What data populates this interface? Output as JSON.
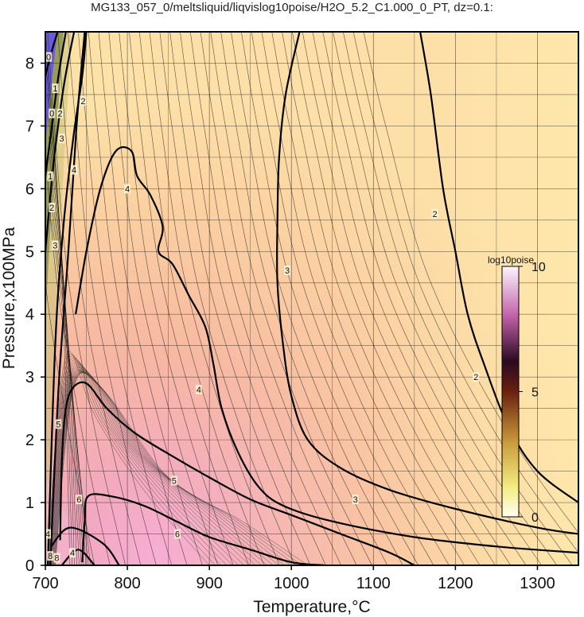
{
  "chart_data": {
    "type": "heatmap",
    "title": "MG133_057_0/meltsliquid/liqvislog10poise/H2O_5.2_C1.000_0_PT, dz=0.1:",
    "xlabel": "Temperature,°C",
    "ylabel": "Pressure,x100MPa",
    "xlim": [
      700,
      1350
    ],
    "ylim": [
      0,
      8.5
    ],
    "xticks": [
      700,
      800,
      900,
      1000,
      1100,
      1200,
      1300
    ],
    "yticks": [
      0,
      1,
      2,
      3,
      4,
      5,
      6,
      7,
      8
    ],
    "grid": true,
    "colorbar": {
      "label": "log10poise",
      "min": 0,
      "max": 10,
      "ticks": [
        "0",
        "5",
        "10"
      ]
    },
    "contour_interval": 0.1,
    "major_contours": [
      {
        "level": 2,
        "points": [
          [
            1157,
            8.5
          ],
          [
            1170,
            7.5
          ],
          [
            1185,
            6.0
          ],
          [
            1200,
            5.0
          ],
          [
            1215,
            4.0
          ],
          [
            1235,
            3.2
          ],
          [
            1265,
            2.2
          ],
          [
            1300,
            1.5
          ],
          [
            1350,
            1.0
          ]
        ]
      },
      {
        "level": 3,
        "points": [
          [
            1010,
            8.5
          ],
          [
            993,
            7.5
          ],
          [
            985,
            6.5
          ],
          [
            983,
            5.5
          ],
          [
            983,
            4.5
          ],
          [
            990,
            3.5
          ],
          [
            1000,
            2.7
          ],
          [
            1020,
            2.0
          ],
          [
            1060,
            1.55
          ],
          [
            1120,
            1.2
          ],
          [
            1200,
            0.9
          ],
          [
            1300,
            0.6
          ],
          [
            1350,
            0.5
          ]
        ]
      },
      {
        "level": 4,
        "points": [
          [
            737,
            4.0
          ],
          [
            750,
            5.0
          ],
          [
            767,
            6.0
          ],
          [
            786,
            6.6
          ],
          [
            805,
            6.6
          ],
          [
            812,
            6.2
          ],
          [
            828,
            5.9
          ],
          [
            843,
            5.4
          ],
          [
            838,
            5.0
          ],
          [
            855,
            4.8
          ],
          [
            875,
            4.3
          ],
          [
            895,
            3.8
          ],
          [
            905,
            3.2
          ],
          [
            915,
            2.5
          ],
          [
            935,
            1.8
          ],
          [
            960,
            1.25
          ],
          [
            990,
            0.95
          ],
          [
            1050,
            0.7
          ],
          [
            1150,
            0.45
          ],
          [
            1250,
            0.3
          ],
          [
            1350,
            0.2
          ]
        ]
      },
      {
        "level": 5,
        "points": [
          [
            718,
            0.4
          ],
          [
            720,
            1.6
          ],
          [
            724,
            2.4
          ],
          [
            732,
            2.8
          ],
          [
            750,
            2.9
          ],
          [
            775,
            2.5
          ],
          [
            810,
            2.1
          ],
          [
            860,
            1.7
          ],
          [
            900,
            1.4
          ],
          [
            950,
            1.05
          ],
          [
            1000,
            0.8
          ],
          [
            1060,
            0.5
          ],
          [
            1120,
            0.2
          ],
          [
            1150,
            0
          ]
        ]
      },
      {
        "level": 6,
        "points": [
          [
            745,
            0.05
          ],
          [
            748,
            0.7
          ],
          [
            752,
            1.1
          ],
          [
            780,
            1.1
          ],
          [
            820,
            0.95
          ],
          [
            860,
            0.7
          ],
          [
            900,
            0.45
          ],
          [
            950,
            0.25
          ],
          [
            1000,
            0.05
          ],
          [
            1040,
            0
          ]
        ]
      },
      {
        "level": 4,
        "points": [
          [
            703,
            0
          ],
          [
            712,
            3.5
          ],
          [
            722,
            5.4
          ],
          [
            734,
            6.8
          ],
          [
            745,
            7.8
          ],
          [
            750,
            8.5
          ]
        ]
      },
      {
        "level": 3,
        "points": [
          [
            706,
            0
          ],
          [
            716,
            2.8
          ],
          [
            728,
            5.0
          ],
          [
            738,
            7.0
          ],
          [
            748,
            8.5
          ]
        ]
      },
      {
        "level": 2,
        "points": [
          [
            700,
            5.0
          ],
          [
            710,
            6.4
          ],
          [
            722,
            7.6
          ],
          [
            735,
            8.5
          ]
        ]
      },
      {
        "level": 1,
        "points": [
          [
            700,
            6.2
          ],
          [
            708,
            7.0
          ],
          [
            716,
            7.8
          ],
          [
            725,
            8.5
          ]
        ]
      },
      {
        "level": 0,
        "points": [
          [
            700,
            7.8
          ],
          [
            708,
            8.2
          ],
          [
            715,
            8.5
          ]
        ]
      },
      {
        "level": 5,
        "points": [
          [
            707,
            0.3
          ],
          [
            730,
            0.6
          ],
          [
            770,
            0.35
          ],
          [
            790,
            0
          ]
        ]
      },
      {
        "level": 6,
        "points": [
          [
            720,
            0
          ],
          [
            740,
            0.25
          ],
          [
            760,
            0
          ]
        ]
      }
    ],
    "contour_labels": [
      {
        "text": "0",
        "x": 704,
        "y": 8.1
      },
      {
        "text": "0",
        "x": 708,
        "y": 7.2
      },
      {
        "text": "1",
        "x": 712,
        "y": 7.6
      },
      {
        "text": "2",
        "x": 718,
        "y": 7.2
      },
      {
        "text": "3",
        "x": 720,
        "y": 6.8
      },
      {
        "text": "1",
        "x": 706,
        "y": 6.2
      },
      {
        "text": "2",
        "x": 708,
        "y": 5.7
      },
      {
        "text": "3",
        "x": 712,
        "y": 5.1
      },
      {
        "text": "4",
        "x": 735,
        "y": 6.3
      },
      {
        "text": "2",
        "x": 746,
        "y": 7.4
      },
      {
        "text": "4",
        "x": 800,
        "y": 6.0
      },
      {
        "text": "4",
        "x": 887,
        "y": 2.8
      },
      {
        "text": "5",
        "x": 716,
        "y": 2.25
      },
      {
        "text": "5",
        "x": 857,
        "y": 1.35
      },
      {
        "text": "6",
        "x": 741,
        "y": 1.05
      },
      {
        "text": "6",
        "x": 861,
        "y": 0.5
      },
      {
        "text": "4",
        "x": 703,
        "y": 0.5
      },
      {
        "text": "8",
        "x": 706,
        "y": 0.15
      },
      {
        "text": "8",
        "x": 714,
        "y": 0.12
      },
      {
        "text": "4",
        "x": 733,
        "y": 0.2
      },
      {
        "text": "3",
        "x": 995,
        "y": 4.7
      },
      {
        "text": "3",
        "x": 1078,
        "y": 1.05
      },
      {
        "text": "2",
        "x": 1175,
        "y": 5.6
      },
      {
        "text": "2",
        "x": 1225,
        "y": 3.0
      }
    ],
    "colors": {
      "high": "#f2aac8",
      "mid_high": "#f5b0a6",
      "mid": "#fbd2a4",
      "low": "#fde6aa",
      "very_low_green": "#8a9a50",
      "blue_region": "#6a5cd8"
    }
  }
}
